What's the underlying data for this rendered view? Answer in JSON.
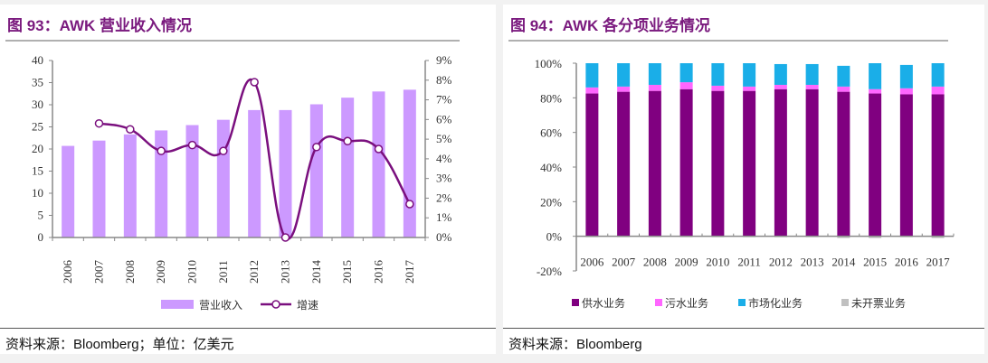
{
  "left": {
    "title": "图 93：AWK 营业收入情况",
    "source": "资料来源：Bloomberg；单位：亿美元"
  },
  "right": {
    "title": "图 94：AWK 各分项业务情况",
    "source": "资料来源：Bloomberg"
  },
  "chart_data": [
    {
      "type": "bar+line",
      "categories": [
        "2006",
        "2007",
        "2008",
        "2009",
        "2010",
        "2011",
        "2012",
        "2013",
        "2014",
        "2015",
        "2016",
        "2017"
      ],
      "series": [
        {
          "name": "营业收入",
          "type": "bar",
          "axis": "left",
          "color": "#cc99ff",
          "values": [
            20.7,
            21.9,
            23.3,
            24.2,
            25.4,
            26.6,
            28.8,
            28.8,
            30.1,
            31.6,
            33.0,
            33.4
          ]
        },
        {
          "name": "增速",
          "type": "line",
          "axis": "right",
          "color": "#7a0f7e",
          "values": [
            null,
            5.8,
            5.5,
            4.4,
            4.7,
            4.4,
            7.9,
            0.0,
            4.6,
            4.9,
            4.5,
            1.7
          ]
        }
      ],
      "ylim_left": [
        0,
        40
      ],
      "yticks_left": [
        "0",
        "5",
        "10",
        "15",
        "20",
        "25",
        "30",
        "35",
        "40"
      ],
      "ylim_right": [
        0,
        9
      ],
      "yticks_right": [
        "0%",
        "1%",
        "2%",
        "3%",
        "4%",
        "5%",
        "6%",
        "7%",
        "8%",
        "9%"
      ],
      "legend": "bottom",
      "grid": false
    },
    {
      "type": "stacked-bar",
      "categories": [
        "2006",
        "2007",
        "2008",
        "2009",
        "2010",
        "2011",
        "2012",
        "2013",
        "2014",
        "2015",
        "2016",
        "2017"
      ],
      "series": [
        {
          "name": "供水业务",
          "color": "#800080",
          "values": [
            82.5,
            83.5,
            84.0,
            85.0,
            84.0,
            84.0,
            85.0,
            85.0,
            83.5,
            82.5,
            82.0,
            82.0
          ]
        },
        {
          "name": "污水业务",
          "color": "#ff66ff",
          "values": [
            3.5,
            3.0,
            3.5,
            4.0,
            3.0,
            2.5,
            2.5,
            2.5,
            3.0,
            2.5,
            3.5,
            4.5
          ]
        },
        {
          "name": "市场化业务",
          "color": "#1aaee8",
          "values": [
            14.0,
            13.5,
            12.5,
            11.0,
            13.0,
            13.5,
            12.0,
            12.0,
            12.0,
            15.0,
            13.5,
            13.5
          ]
        },
        {
          "name": "未开票业务",
          "color": "#c0c0c0",
          "values": [
            -0.5,
            -0.5,
            -0.5,
            -0.5,
            -0.5,
            -0.5,
            -0.5,
            -0.5,
            -1.0,
            -1.0,
            -0.5,
            -1.0
          ]
        }
      ],
      "ylim": [
        -20,
        100
      ],
      "yticks": [
        "-20%",
        "0%",
        "20%",
        "40%",
        "60%",
        "80%",
        "100%"
      ],
      "legend": "bottom",
      "grid": false
    }
  ]
}
